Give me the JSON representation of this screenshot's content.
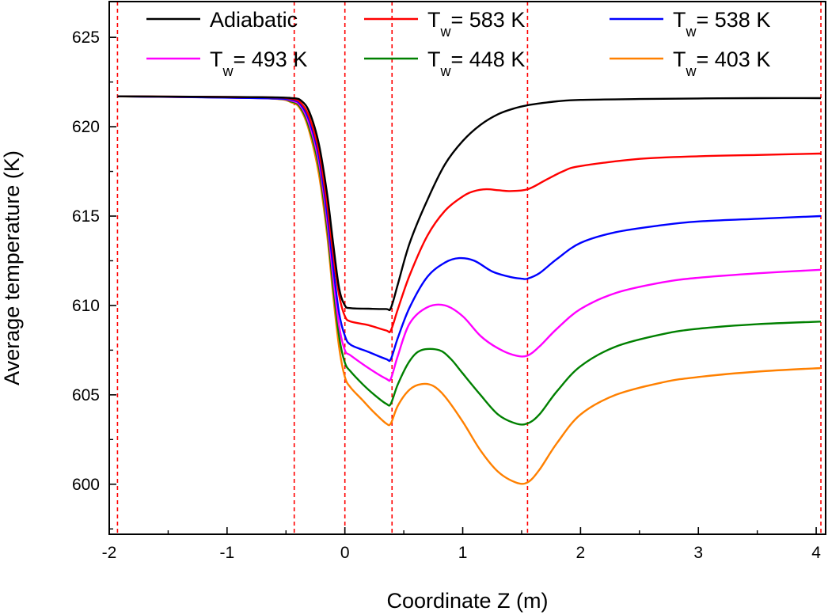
{
  "chart_data": {
    "type": "line",
    "title": "",
    "xlabel": "Coordinate Z (m)",
    "ylabel": "Average temperature (K)",
    "xlim": [
      -2.0,
      4.08
    ],
    "ylim": [
      597.2,
      627.0
    ],
    "xticks": [
      -2,
      -1,
      0,
      1,
      2,
      3,
      4
    ],
    "xtick_labels": [
      "-2",
      "-1",
      "0",
      "1",
      "2",
      "3",
      "4"
    ],
    "yticks": [
      600,
      605,
      610,
      615,
      620,
      625
    ],
    "ytick_labels": [
      "600",
      "605",
      "610",
      "615",
      "620",
      "625"
    ],
    "grid": false,
    "legend_position": "top",
    "reference_lines": {
      "orientation": "vertical",
      "style": "dashed",
      "color": "#ff0000",
      "x": [
        -1.93,
        -0.43,
        0.0,
        0.4,
        1.55,
        4.04
      ]
    },
    "series": [
      {
        "name": "Adiabatic",
        "label_main": "Adiabatic",
        "label_sub": "",
        "label_rest": "",
        "color": "#000000",
        "x": [
          -1.93,
          -0.7,
          -0.45,
          -0.37,
          -0.3,
          -0.22,
          -0.15,
          -0.1,
          -0.05,
          0.0,
          0.05,
          0.2,
          0.35,
          0.39,
          0.45,
          0.55,
          0.7,
          0.85,
          1.0,
          1.15,
          1.3,
          1.45,
          1.55,
          1.65,
          1.8,
          2.0,
          2.5,
          3.0,
          3.5,
          4.04
        ],
        "y": [
          621.7,
          621.65,
          621.6,
          621.45,
          620.8,
          619.0,
          616.2,
          613.5,
          611.0,
          610.0,
          609.85,
          609.82,
          609.8,
          609.85,
          611.2,
          613.5,
          615.9,
          617.9,
          619.2,
          620.1,
          620.7,
          621.05,
          621.2,
          621.3,
          621.42,
          621.5,
          621.55,
          621.58,
          621.6,
          621.6
        ]
      },
      {
        "name": "Tw= 583 K",
        "label_main": "T",
        "label_sub": "w",
        "label_rest": "= 583 K",
        "color": "#ff0000",
        "x": [
          -1.93,
          -0.7,
          -0.45,
          -0.37,
          -0.3,
          -0.22,
          -0.15,
          -0.1,
          -0.05,
          0.0,
          0.05,
          0.2,
          0.35,
          0.39,
          0.45,
          0.55,
          0.7,
          0.85,
          1.0,
          1.1,
          1.2,
          1.3,
          1.4,
          1.55,
          1.7,
          1.85,
          2.0,
          2.5,
          3.0,
          3.5,
          4.04
        ],
        "y": [
          621.7,
          621.65,
          621.55,
          621.3,
          620.5,
          618.6,
          615.6,
          612.9,
          610.6,
          609.4,
          609.1,
          608.9,
          608.6,
          608.6,
          609.8,
          611.7,
          613.9,
          615.3,
          616.1,
          616.4,
          616.5,
          616.45,
          616.4,
          616.5,
          617.0,
          617.5,
          617.8,
          618.2,
          618.35,
          618.42,
          618.5
        ]
      },
      {
        "name": "Tw= 538 K",
        "label_main": "T",
        "label_sub": "w",
        "label_rest": "= 538 K",
        "color": "#0000ff",
        "x": [
          -1.93,
          -0.7,
          -0.45,
          -0.37,
          -0.3,
          -0.22,
          -0.15,
          -0.1,
          -0.05,
          0.0,
          0.05,
          0.2,
          0.35,
          0.39,
          0.45,
          0.55,
          0.7,
          0.85,
          0.97,
          1.1,
          1.25,
          1.4,
          1.5,
          1.55,
          1.65,
          1.8,
          2.0,
          2.3,
          2.7,
          3.0,
          3.5,
          4.04
        ],
        "y": [
          621.7,
          621.6,
          621.5,
          621.2,
          620.3,
          618.3,
          615.1,
          612.2,
          609.6,
          608.3,
          607.8,
          607.4,
          607.0,
          607.0,
          608.2,
          609.9,
          611.6,
          612.4,
          612.65,
          612.5,
          611.9,
          611.6,
          611.5,
          611.5,
          611.8,
          612.6,
          613.5,
          614.1,
          614.5,
          614.7,
          614.85,
          615.0
        ]
      },
      {
        "name": "Tw= 493 K",
        "label_main": "T",
        "label_sub": "w",
        "label_rest": "= 493 K",
        "color": "#ff00ff",
        "x": [
          -1.93,
          -0.7,
          -0.45,
          -0.37,
          -0.3,
          -0.22,
          -0.15,
          -0.1,
          -0.05,
          0.0,
          0.05,
          0.2,
          0.35,
          0.39,
          0.45,
          0.55,
          0.7,
          0.85,
          1.0,
          1.15,
          1.3,
          1.45,
          1.55,
          1.65,
          1.8,
          2.0,
          2.3,
          2.7,
          3.0,
          3.5,
          4.04
        ],
        "y": [
          621.7,
          621.6,
          621.45,
          621.1,
          620.1,
          618.0,
          614.7,
          611.6,
          608.9,
          607.5,
          607.2,
          606.5,
          605.9,
          605.9,
          607.2,
          609.0,
          609.9,
          610.0,
          609.4,
          608.3,
          607.6,
          607.2,
          607.2,
          607.7,
          608.7,
          609.8,
          610.7,
          611.3,
          611.55,
          611.8,
          612.0
        ]
      },
      {
        "name": "Tw= 448 K",
        "label_main": "T",
        "label_sub": "w",
        "label_rest": "= 448 K",
        "color": "#008000",
        "x": [
          -1.93,
          -0.7,
          -0.45,
          -0.37,
          -0.3,
          -0.22,
          -0.15,
          -0.1,
          -0.05,
          0.0,
          0.05,
          0.15,
          0.25,
          0.35,
          0.39,
          0.45,
          0.55,
          0.65,
          0.8,
          0.9,
          1.0,
          1.15,
          1.3,
          1.45,
          1.55,
          1.65,
          1.8,
          2.0,
          2.3,
          2.7,
          3.0,
          3.5,
          4.04
        ],
        "y": [
          621.7,
          621.6,
          621.4,
          621.0,
          619.9,
          617.7,
          614.3,
          611.1,
          608.3,
          606.8,
          606.3,
          605.6,
          605.0,
          604.5,
          604.5,
          605.6,
          606.9,
          607.5,
          607.5,
          607.0,
          606.2,
          605.0,
          603.9,
          603.4,
          603.4,
          603.9,
          605.2,
          606.6,
          607.7,
          608.4,
          608.7,
          608.95,
          609.1
        ]
      },
      {
        "name": "Tw= 403 K",
        "label_main": "T",
        "label_sub": "w",
        "label_rest": "= 403 K",
        "color": "#ff8000",
        "x": [
          -1.93,
          -0.7,
          -0.45,
          -0.37,
          -0.3,
          -0.22,
          -0.15,
          -0.1,
          -0.05,
          0.0,
          0.05,
          0.15,
          0.25,
          0.35,
          0.39,
          0.45,
          0.55,
          0.65,
          0.75,
          0.85,
          1.0,
          1.15,
          1.3,
          1.45,
          1.55,
          1.65,
          1.8,
          2.0,
          2.3,
          2.7,
          3.0,
          3.5,
          4.04
        ],
        "y": [
          621.7,
          621.6,
          621.35,
          620.9,
          619.7,
          617.3,
          613.9,
          610.6,
          607.7,
          606.0,
          605.4,
          604.7,
          604.0,
          603.4,
          603.4,
          604.4,
          605.3,
          605.6,
          605.5,
          604.9,
          603.5,
          601.9,
          600.7,
          600.1,
          600.1,
          600.8,
          602.3,
          603.9,
          605.0,
          605.7,
          606.0,
          606.3,
          606.5
        ]
      }
    ]
  }
}
